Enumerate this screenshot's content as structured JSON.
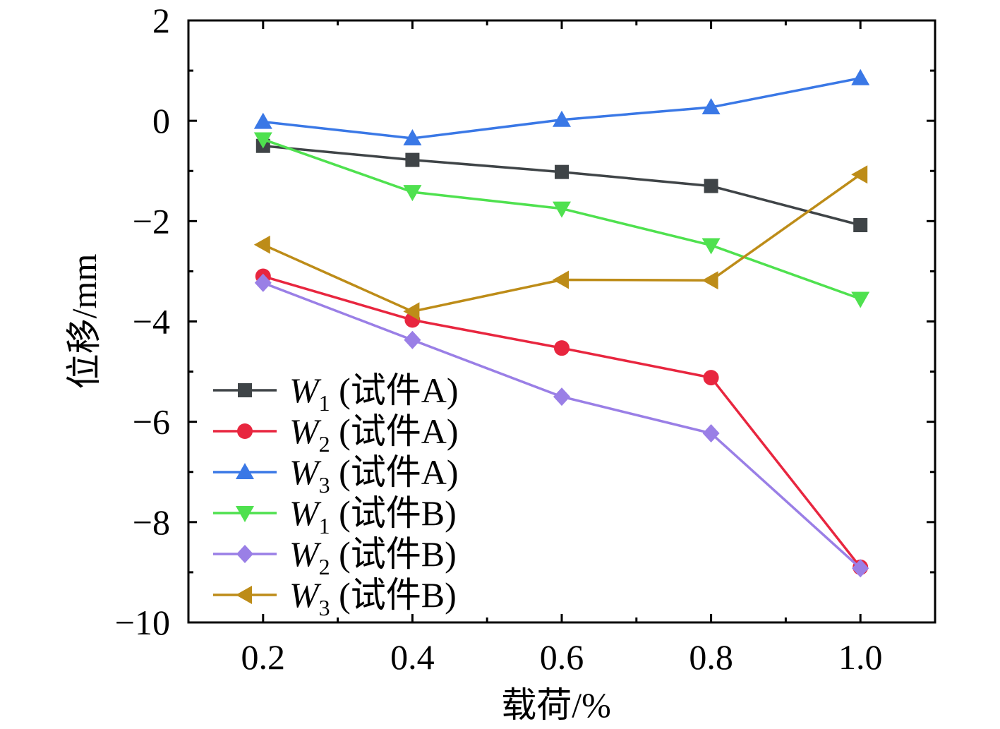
{
  "chart_data": {
    "type": "line",
    "title": "",
    "xlabel": "载荷/%",
    "ylabel": "位移/mm",
    "xlim": [
      0.1,
      1.1
    ],
    "ylim": [
      -10,
      2
    ],
    "x_ticks": [
      "0.2",
      "0.4",
      "0.6",
      "0.8",
      "1.0"
    ],
    "y_ticks": [
      "−10",
      "−8",
      "−6",
      "−4",
      "−2",
      "0",
      "2"
    ],
    "grid": false,
    "legend_position": "bottom-left",
    "x": [
      0.2,
      0.4,
      0.6,
      0.8,
      1.0
    ],
    "series": [
      {
        "name": "W1 (试件A)",
        "symbol": "W",
        "sub": "1",
        "suffix": " (试件A)",
        "color": "#3f4447",
        "marker": "square",
        "values": [
          -0.5,
          -0.78,
          -1.02,
          -1.3,
          -2.08
        ]
      },
      {
        "name": "W2 (试件A)",
        "symbol": "W",
        "sub": "2",
        "suffix": " (试件A)",
        "color": "#e8263f",
        "marker": "circle",
        "values": [
          -3.1,
          -3.97,
          -4.53,
          -5.12,
          -8.9
        ]
      },
      {
        "name": "W3 (试件A)",
        "symbol": "W",
        "sub": "3",
        "suffix": " (试件A)",
        "color": "#3a78e6",
        "marker": "triangle-up",
        "values": [
          -0.02,
          -0.35,
          0.02,
          0.27,
          0.85
        ]
      },
      {
        "name": "W1 (试件B)",
        "symbol": "W",
        "sub": "1",
        "suffix": " (试件B)",
        "color": "#4fe14f",
        "marker": "triangle-down",
        "values": [
          -0.37,
          -1.42,
          -1.75,
          -2.48,
          -3.55
        ]
      },
      {
        "name": "W2 (试件B)",
        "symbol": "W",
        "sub": "2",
        "suffix": " (试件B)",
        "color": "#9a7fe6",
        "marker": "diamond",
        "values": [
          -3.23,
          -4.37,
          -5.5,
          -6.23,
          -8.92
        ]
      },
      {
        "name": "W3 (试件B)",
        "symbol": "W",
        "sub": "3",
        "suffix": " (试件B)",
        "color": "#bd8c18",
        "marker": "triangle-left",
        "values": [
          -2.47,
          -3.8,
          -3.17,
          -3.18,
          -1.07
        ]
      }
    ]
  }
}
